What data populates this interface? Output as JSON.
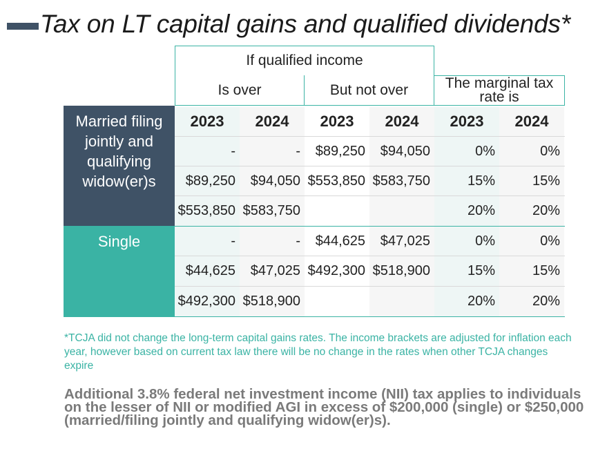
{
  "title": "Tax on LT capital gains and qualified dividends*",
  "header": {
    "group": "If qualified income",
    "is_over": "Is over",
    "but_not_over": "But not over",
    "marginal": "The marginal tax rate is"
  },
  "years": [
    "2023",
    "2024",
    "2023",
    "2024",
    "2023",
    "2024"
  ],
  "groups": [
    {
      "label": "Married filing jointly and qualifying widow(er)s",
      "rows": [
        [
          "-",
          "-",
          "$89,250",
          "$94,050",
          "0%",
          "0%"
        ],
        [
          "$89,250",
          "$94,050",
          "$553,850",
          "$583,750",
          "15%",
          "15%"
        ],
        [
          "$553,850",
          "$583,750",
          "",
          "",
          "20%",
          "20%"
        ]
      ]
    },
    {
      "label": "Single",
      "rows": [
        [
          "-",
          "-",
          "$44,625",
          "$47,025",
          "0%",
          "0%"
        ],
        [
          "$44,625",
          "$47,025",
          "$492,300",
          "$518,900",
          "15%",
          "15%"
        ],
        [
          "$492,300",
          "$518,900",
          "",
          "",
          "20%",
          "20%"
        ]
      ]
    }
  ],
  "footnote": "*TCJA did not change the long-term capital gains rates. The income brackets are adjusted for inflation each year, however based on current tax law there will be no change in the rates when other TCJA changes expire",
  "nii_note": "Additional 3.8% federal net investment income (NII) tax applies to individuals on the lesser of NII or modified AGI in excess of $200,000 (single) or $250,000 (married/filing jointly and qualifying widow(er)s).",
  "colors": {
    "title_bar": "#3f5266",
    "married_band": "#3f5266",
    "single_band": "#3ab3a4",
    "footnote": "#3ab3a4",
    "col_light": "#eef6f5",
    "col_gray": "#f4f4f4"
  }
}
